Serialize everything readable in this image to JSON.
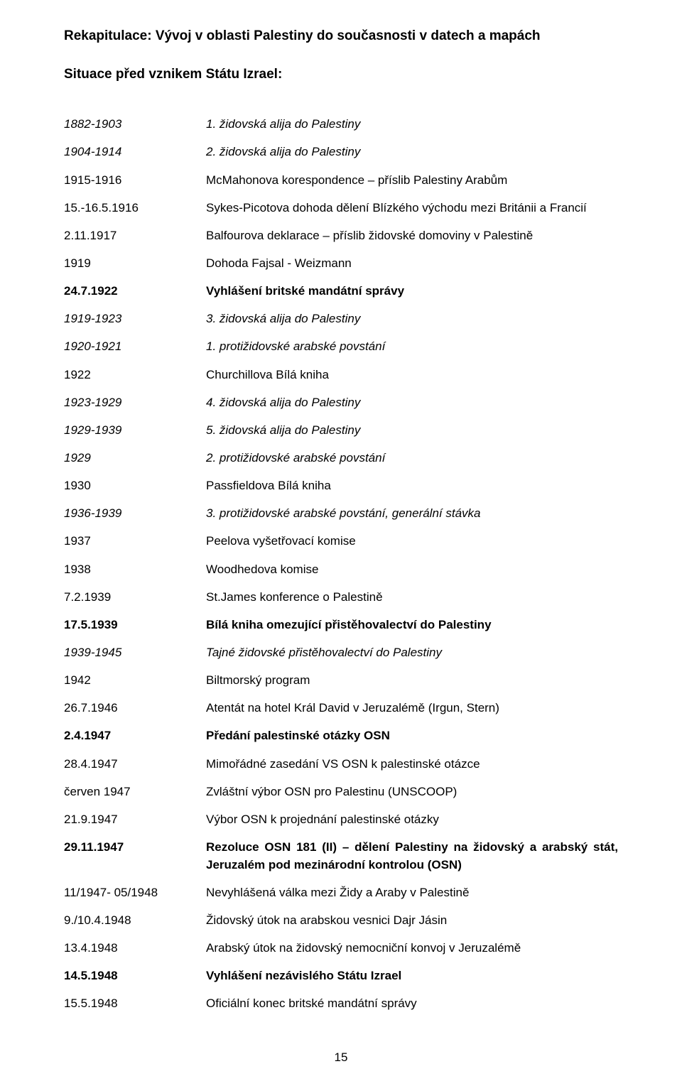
{
  "title": "Rekapitulace: Vývoj v oblasti Palestiny do současnosti v datech a mapách",
  "subtitle": "Situace před vznikem Státu Izrael:",
  "page_number": "15",
  "rows": [
    {
      "date": "1882-1903",
      "date_italic": true,
      "event": "1. židovská alija do Palestiny",
      "event_italic": true
    },
    {
      "date": "1904-1914",
      "date_italic": true,
      "event": "2. židovská alija do Palestiny",
      "event_italic": true
    },
    {
      "date": "1915-1916",
      "event": "McMahonova korespondence – příslib Palestiny Arabům"
    },
    {
      "date": "15.-16.5.1916",
      "event": "Sykes-Picotova dohoda dělení Blízkého východu mezi Británii a Francií"
    },
    {
      "date": "2.11.1917",
      "event": "Balfourova deklarace – příslib židovské domoviny v Palestině"
    },
    {
      "date": "1919",
      "event": "Dohoda Fajsal - Weizmann"
    },
    {
      "date": "24.7.1922",
      "date_bold": true,
      "event": "Vyhlášení britské mandátní správy",
      "event_bold": true
    },
    {
      "date": "1919-1923",
      "date_italic": true,
      "event": "3. židovská alija do Palestiny",
      "event_italic": true
    },
    {
      "date": "1920-1921",
      "date_italic": true,
      "event": "1. protižidovské arabské povstání",
      "event_italic": true
    },
    {
      "date": "1922",
      "event": "Churchillova Bílá kniha"
    },
    {
      "date": "1923-1929",
      "date_italic": true,
      "event": "4. židovská alija do Palestiny",
      "event_italic": true
    },
    {
      "date": "1929-1939",
      "date_italic": true,
      "event": "5. židovská alija do Palestiny",
      "event_italic": true
    },
    {
      "date": "1929",
      "date_italic": true,
      "event": "2. protižidovské arabské povstání",
      "event_italic": true
    },
    {
      "date": "1930",
      "event": "Passfieldova Bílá kniha"
    },
    {
      "date": "1936-1939",
      "date_italic": true,
      "event": "3. protižidovské arabské povstání, generální stávka",
      "event_italic": true
    },
    {
      "date": "1937",
      "event": "Peelova vyšetřovací komise"
    },
    {
      "date": "1938",
      "event": "Woodhedova komise"
    },
    {
      "date": "7.2.1939",
      "event": "St.James konference o Palestině"
    },
    {
      "date": "17.5.1939",
      "date_bold": true,
      "event": "Bílá kniha omezující přistěhovalectví do Palestiny",
      "event_bold": true
    },
    {
      "date": "1939-1945",
      "date_italic": true,
      "event": "Tajné židovské přistěhovalectví do Palestiny",
      "event_italic": true
    },
    {
      "date": "1942",
      "event": "Biltmorský program"
    },
    {
      "date": "26.7.1946",
      "event": "Atentát na hotel Král David v Jeruzalémě (Irgun, Stern)"
    },
    {
      "date": "2.4.1947",
      "date_bold": true,
      "event": "Předání palestinské otázky OSN",
      "event_bold": true
    },
    {
      "date": "28.4.1947",
      "event": "Mimořádné zasedání VS OSN k palestinské otázce"
    },
    {
      "date": "červen 1947",
      "event": "Zvláštní výbor OSN pro Palestinu (UNSCOOP)"
    },
    {
      "date": "21.9.1947",
      "event": "Výbor OSN k projednání palestinské otázky"
    },
    {
      "date": "29.11.1947",
      "date_bold": true,
      "event": "Rezoluce OSN 181 (II) – dělení Palestiny na židovský a arabský stát, Jeruzalém pod mezinárodní kontrolou (OSN)",
      "event_bold": true,
      "justify": true
    },
    {
      "date": "11/1947- 05/1948",
      "event": "Nevyhlášená válka mezi Židy a Araby v Palestině"
    },
    {
      "date": "9./10.4.1948",
      "event": "Židovský útok na arabskou vesnici Dajr Jásin"
    },
    {
      "date": "13.4.1948",
      "event": "Arabský útok na židovský nemocniční konvoj v Jeruzalémě"
    },
    {
      "date": "14.5.1948",
      "date_bold": true,
      "event": "Vyhlášení nezávislého Státu Izrael",
      "event_bold": true
    },
    {
      "date": "15.5.1948",
      "event": "Oficiální konec britské mandátní správy"
    }
  ]
}
